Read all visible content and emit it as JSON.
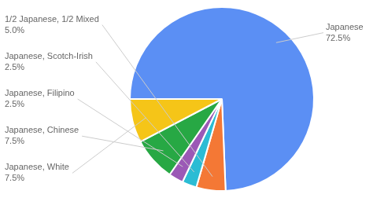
{
  "chart_data": {
    "type": "pie",
    "categories": [
      "Japanese",
      "1/2 Japanese, 1/2 Mixed",
      "Japanese, Scotch-Irish",
      "Japanese, Filipino",
      "Japanese, Chinese",
      "Japanese, White"
    ],
    "values": [
      72.5,
      5.0,
      2.5,
      2.5,
      7.5,
      7.5
    ],
    "value_labels": [
      "72.5%",
      "5.0%",
      "2.5%",
      "2.5%",
      "7.5%",
      "7.5%"
    ],
    "colors": [
      "#5b8ff4",
      "#f47835",
      "#2bbcd4",
      "#9b59b6",
      "#27a844",
      "#f5c518"
    ],
    "data_labels": true
  }
}
